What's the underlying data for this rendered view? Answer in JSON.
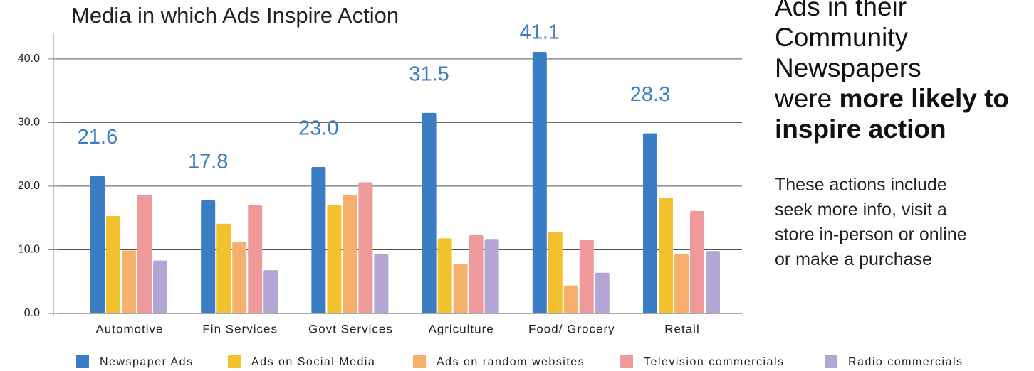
{
  "chart_data": {
    "type": "bar",
    "title": "Media in which Ads Inspire Action",
    "categories": [
      "Automotive",
      "Fin Services",
      "Govt Services",
      "Agriculture",
      "Food/ Grocery",
      "Retail"
    ],
    "series": [
      {
        "name": "Newspaper Ads",
        "color": "#3b7dc4",
        "values": [
          21.6,
          17.8,
          23.0,
          31.5,
          41.1,
          28.3
        ],
        "value_labels": [
          "21.6",
          "17.8",
          "23.0",
          "31.5",
          "41.1",
          "28.3"
        ]
      },
      {
        "name": "Ads on Social Media",
        "color": "#f2c12e",
        "values": [
          15.3,
          14.1,
          17.0,
          11.8,
          12.8,
          18.2
        ]
      },
      {
        "name": "Ads on random websites",
        "color": "#f5b06c",
        "values": [
          9.9,
          11.2,
          18.6,
          7.8,
          4.4,
          9.3
        ]
      },
      {
        "name": "Television commercials",
        "color": "#ee9a9a",
        "values": [
          18.6,
          17.0,
          20.6,
          12.3,
          11.6,
          16.1
        ]
      },
      {
        "name": "Radio commercials",
        "color": "#b3a6d4",
        "values": [
          8.3,
          6.8,
          9.3,
          11.7,
          6.4,
          9.8
        ]
      }
    ],
    "ylim": [
      0,
      44
    ],
    "yticks": [
      {
        "value": 0,
        "label": "0.0"
      },
      {
        "value": 10,
        "label": "10.0"
      },
      {
        "value": 20,
        "label": "20.0"
      },
      {
        "value": 30,
        "label": "30.0"
      },
      {
        "value": 40,
        "label": "40.0"
      }
    ],
    "grid": true,
    "legend": "bottom"
  },
  "side_text": {
    "heading_lines": [
      "Ads in their",
      "Community",
      "Newspapers"
    ],
    "heading_prefix": "were",
    "heading_bold": [
      "more likely to",
      "inspire action"
    ],
    "body_lines": [
      "These actions include",
      "seek more info, visit a",
      "store in-person or online",
      "or make a purchase"
    ]
  }
}
